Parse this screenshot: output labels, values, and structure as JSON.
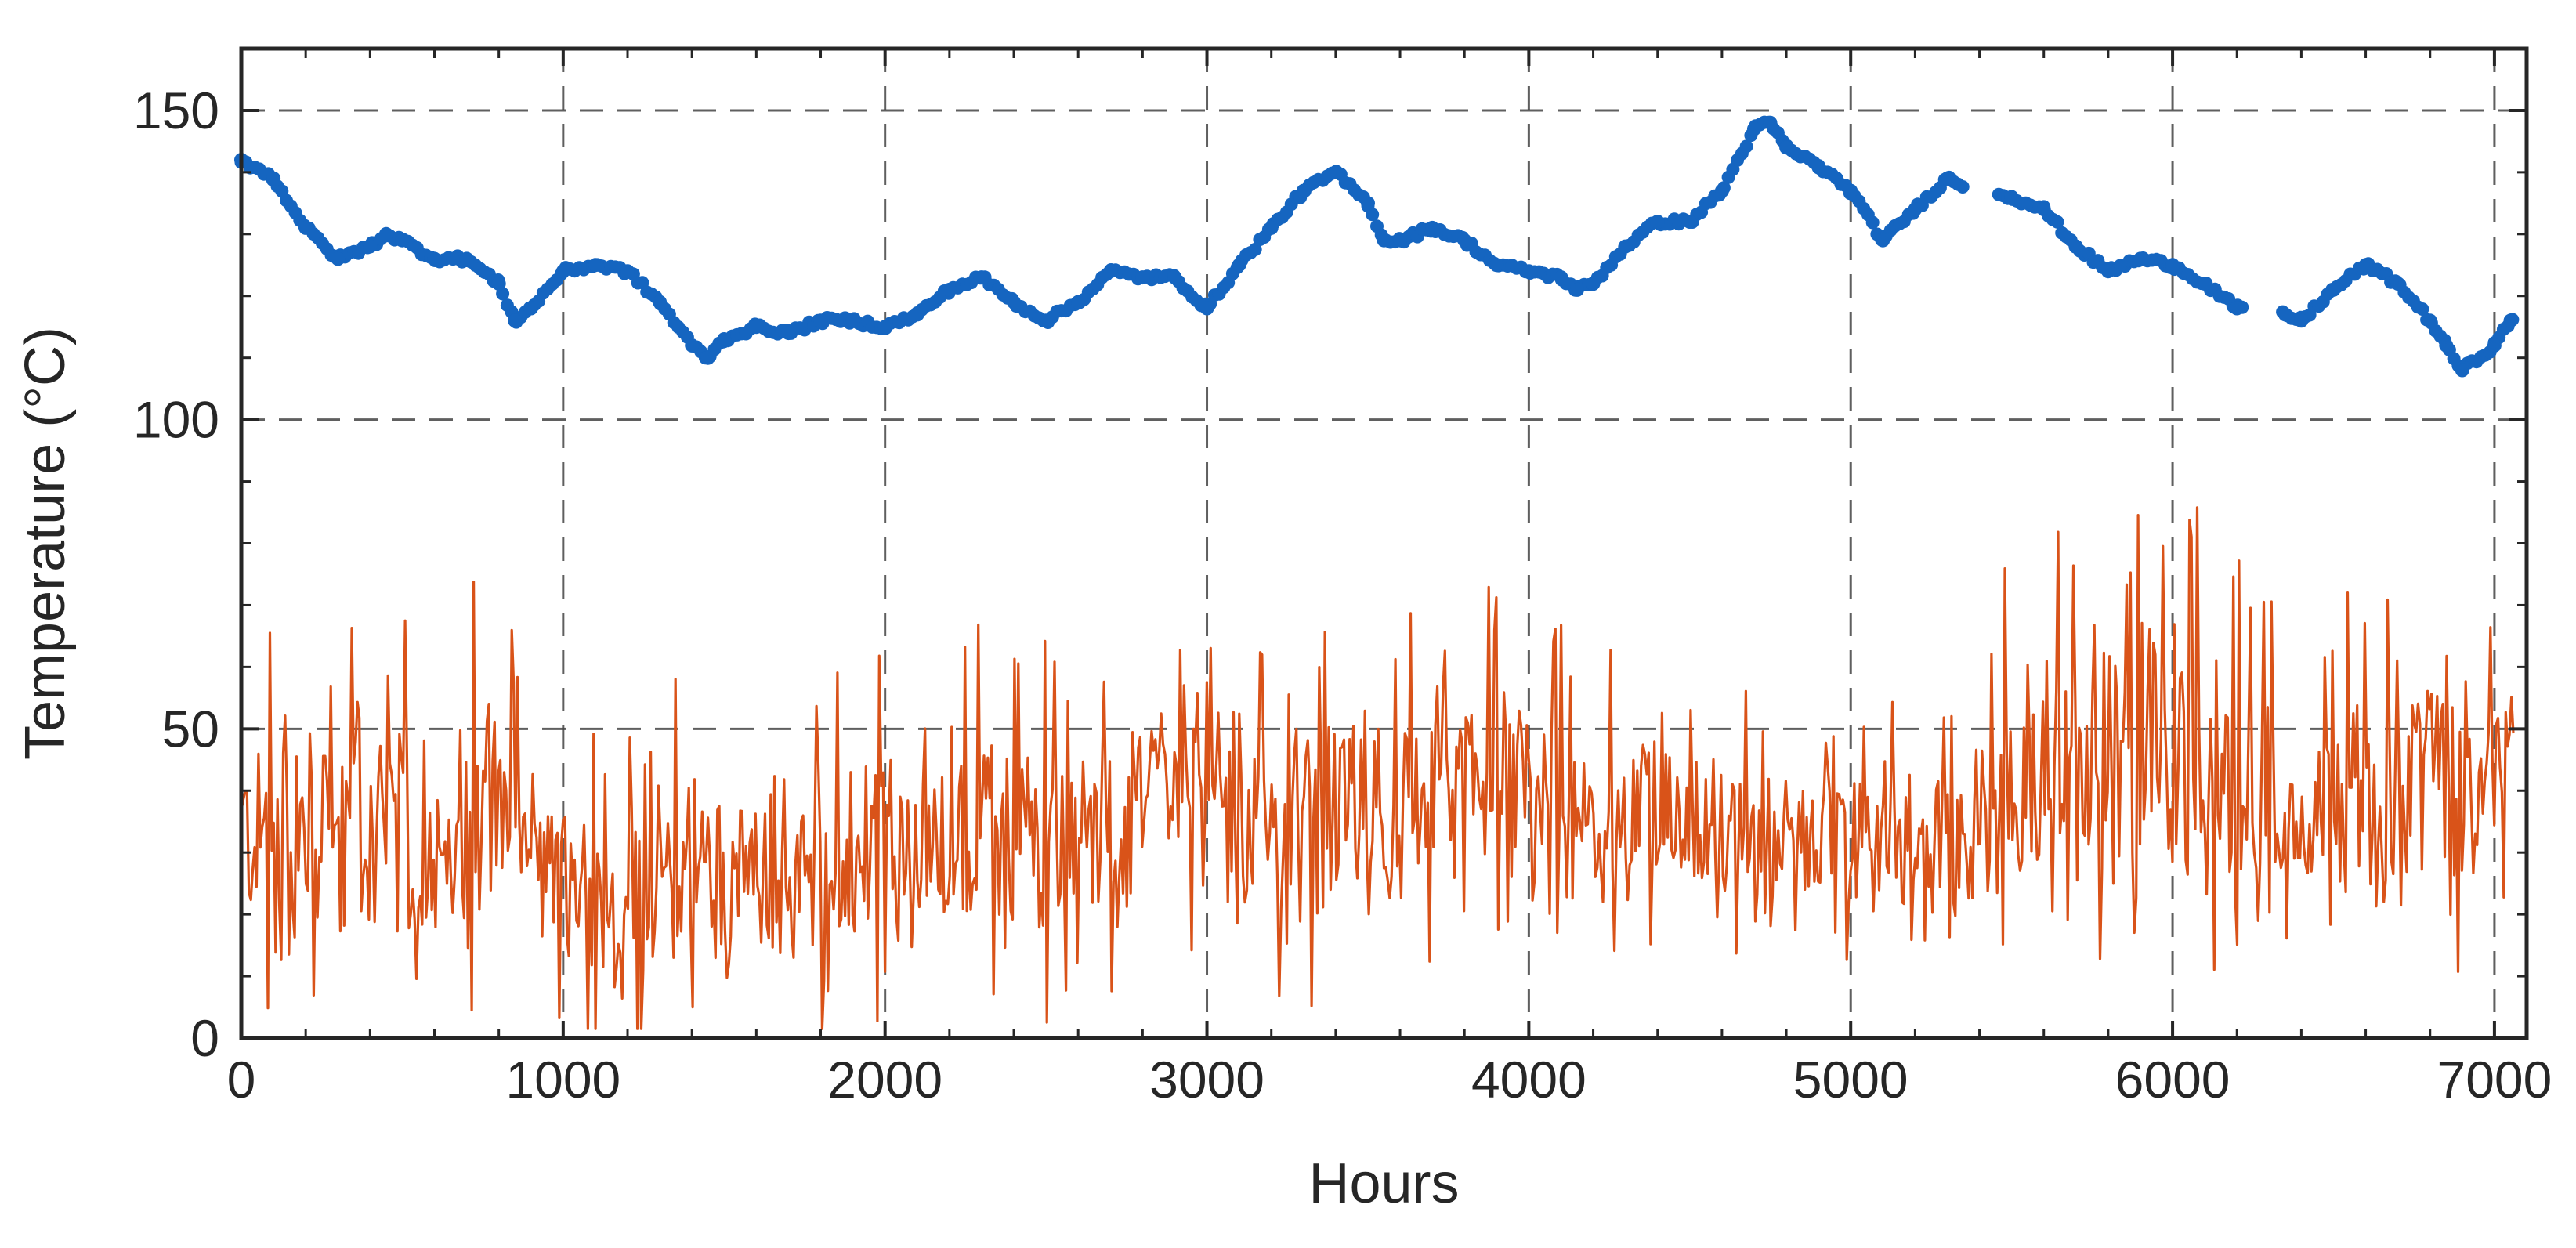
{
  "chart_data": {
    "type": "line",
    "title": "",
    "xlabel": "Hours",
    "ylabel": "Temperature (°C)",
    "xlim": [
      0,
      7100
    ],
    "ylim": [
      0,
      160
    ],
    "xticks": [
      0,
      1000,
      2000,
      3000,
      4000,
      5000,
      6000,
      7000
    ],
    "yticks": [
      0,
      50,
      100,
      150
    ],
    "grid": true,
    "legend": "none",
    "series": [
      {
        "style": "dots",
        "color": "#1565c0",
        "x": [
          0,
          100,
          200,
          300,
          400,
          450,
          500,
          600,
          700,
          800,
          850,
          900,
          1000,
          1100,
          1200,
          1300,
          1400,
          1450,
          1500,
          1600,
          1700,
          1800,
          1900,
          2000,
          2100,
          2200,
          2300,
          2400,
          2500,
          2600,
          2700,
          2800,
          2900,
          3000,
          3100,
          3200,
          3300,
          3400,
          3500,
          3550,
          3600,
          3700,
          3800,
          3900,
          4000,
          4100,
          4150,
          4200,
          4300,
          4400,
          4500,
          4600,
          4700,
          4750,
          4800,
          4900,
          5000,
          5100,
          5200,
          5300,
          5400,
          5500,
          5600,
          5700,
          5800,
          5900,
          6000,
          6100,
          6200,
          6350,
          6400,
          6500,
          6600,
          6700,
          6800,
          6850,
          6900,
          7000,
          7050
        ],
        "y": [
          142,
          139,
          131,
          126,
          128,
          130,
          129,
          126,
          126,
          122,
          116,
          118,
          124,
          125,
          124,
          119,
          112,
          110,
          113,
          115,
          114,
          116,
          116,
          115,
          117,
          121,
          123,
          119,
          116,
          119,
          124,
          123,
          123,
          118,
          125,
          131,
          137,
          140,
          135,
          129,
          129,
          131,
          129,
          125,
          124,
          123,
          121,
          122,
          128,
          132,
          132,
          137,
          147,
          148,
          144,
          141,
          137,
          129,
          134,
          139,
          137,
          136,
          134,
          128,
          124,
          126,
          125,
          122,
          118,
          117,
          116,
          121,
          125,
          122,
          116,
          112,
          108,
          112,
          116
        ]
      },
      {
        "style": "line",
        "color": "#d95319",
        "mean": [
          33,
          33,
          32,
          33,
          32,
          35,
          34,
          32,
          30,
          36,
          40,
          37,
          30,
          27,
          25,
          22,
          18,
          23,
          26,
          28,
          27,
          26,
          25,
          28,
          26,
          24,
          27,
          30,
          31,
          28,
          30,
          34,
          35,
          30,
          33,
          32,
          31,
          30,
          28,
          40,
          44,
          41,
          36,
          33,
          33,
          30,
          33,
          35,
          37,
          37,
          36,
          37,
          40,
          43,
          42,
          39,
          37,
          39,
          35,
          36,
          34,
          38,
          37,
          36,
          35,
          32,
          30,
          31,
          31,
          32,
          29,
          30,
          30,
          32,
          31,
          30,
          35,
          40,
          44,
          46,
          43,
          46,
          44,
          50,
          47,
          43,
          45,
          42,
          37,
          34,
          36,
          37,
          40,
          37,
          36,
          43,
          44,
          36,
          37,
          43
        ],
        "amp": [
          18,
          25,
          23,
          20,
          22,
          26,
          21,
          21,
          16,
          18,
          25,
          22,
          16,
          16,
          16,
          18,
          15,
          18,
          16,
          18,
          16,
          18,
          15,
          18,
          16,
          18,
          19,
          20,
          19,
          18,
          19,
          18,
          19,
          18,
          19,
          20,
          18,
          19,
          15,
          19,
          18,
          18,
          19,
          17,
          18,
          16,
          19,
          19,
          19,
          18,
          19,
          19,
          19,
          18,
          19,
          19,
          18,
          18,
          16,
          16,
          16,
          16,
          14,
          14,
          14,
          14,
          14,
          13,
          13,
          13,
          13,
          13,
          14,
          14,
          14,
          14,
          16,
          21,
          23,
          25,
          24,
          25,
          24,
          26,
          26,
          24,
          25,
          25,
          22,
          16,
          16,
          18,
          19,
          20,
          18,
          22,
          21,
          17,
          18,
          22
        ],
        "samples_per_block": 12,
        "block_hours": 71
      }
    ]
  }
}
